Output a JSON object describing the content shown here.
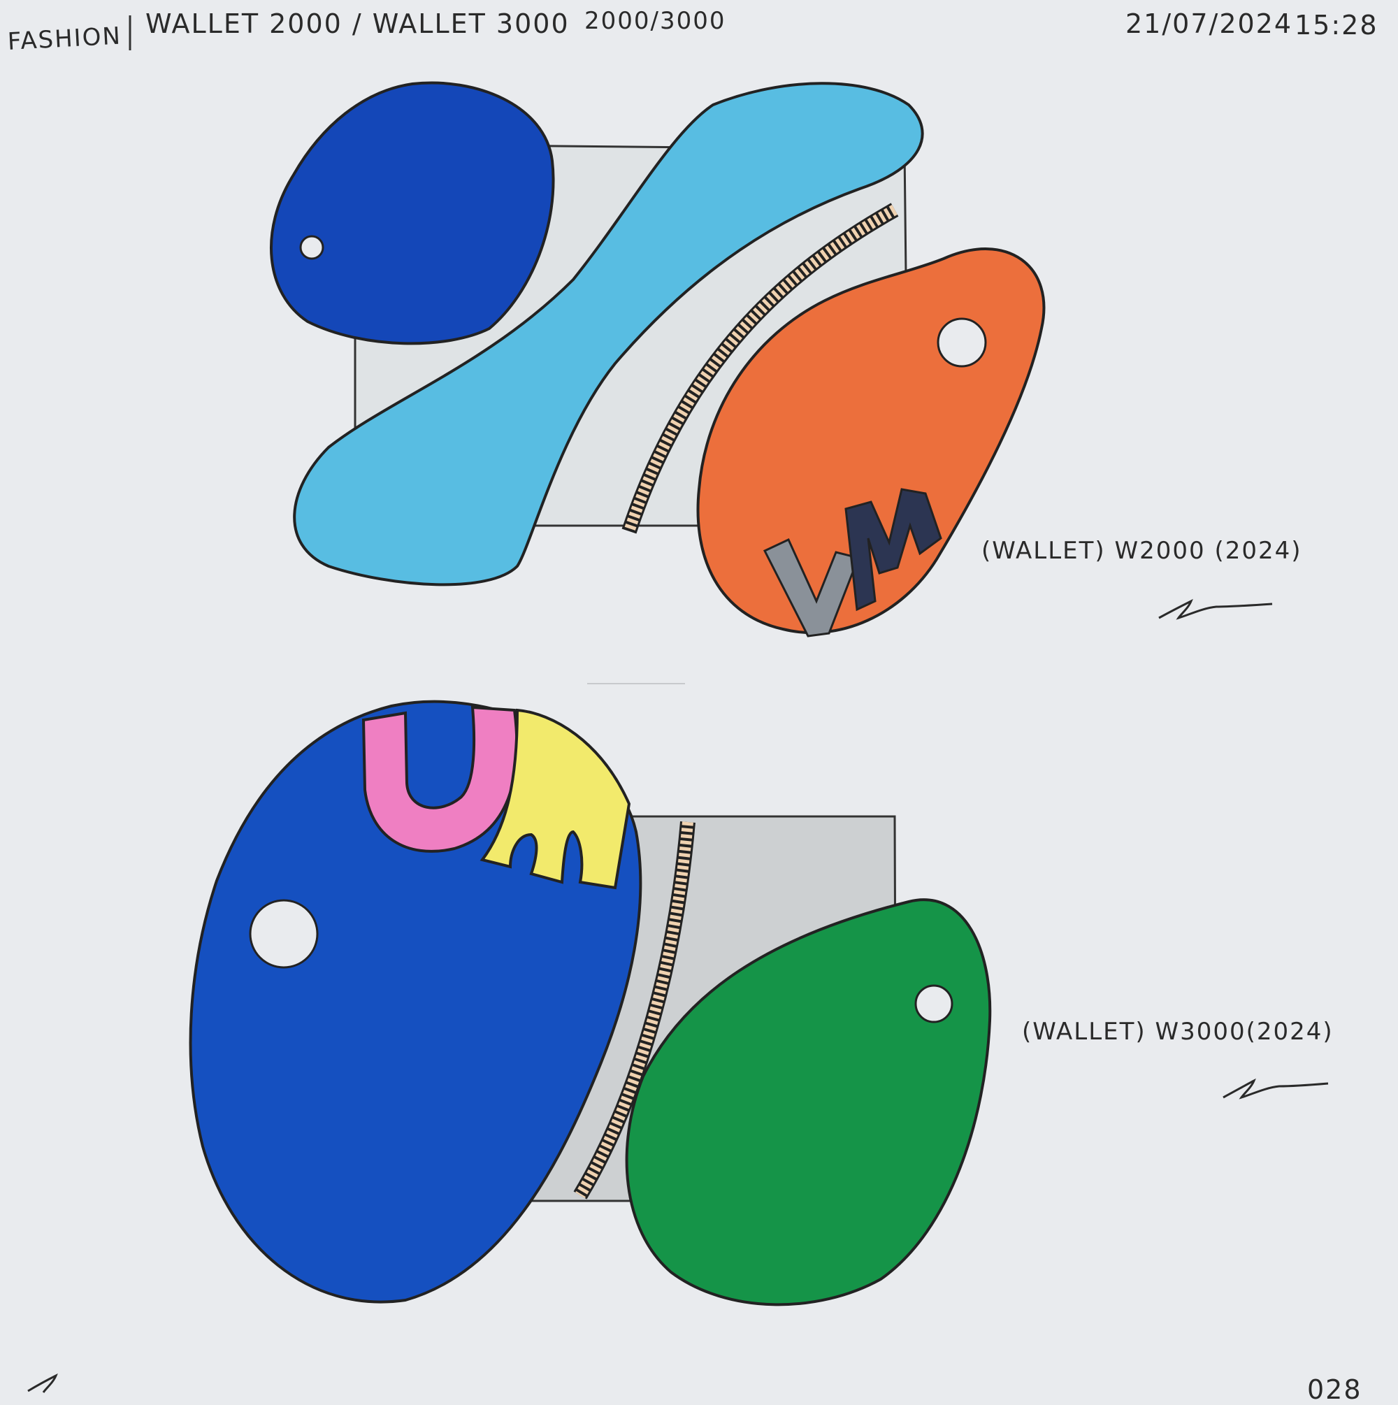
{
  "header": {
    "category": "FASHION",
    "title": "WALLET 2000 / WALLET 3000",
    "numbers": "2000/3000",
    "date": "21/07/2024",
    "time": "15:28"
  },
  "designs": [
    {
      "caption": "(WALLET) W2000 (2024)",
      "monogram": "VM",
      "colors": {
        "dark_blue": "#1447b8",
        "light_blue": "#58bde2",
        "orange": "#ec6f3c",
        "monogram_grey": "#8a9199",
        "monogram_navy": "#2c3552",
        "body": "#dfe3e5",
        "zip": "#f0d2b0"
      }
    },
    {
      "caption": "(WALLET) W3000(2024)",
      "monogram": "UM",
      "colors": {
        "blue": "#1550c0",
        "green": "#159448",
        "pink": "#ef7fc2",
        "yellow": "#f2ea6c",
        "body": "#cdd0d2",
        "zip": "#f0d2b0"
      }
    }
  ],
  "page_number": "028"
}
